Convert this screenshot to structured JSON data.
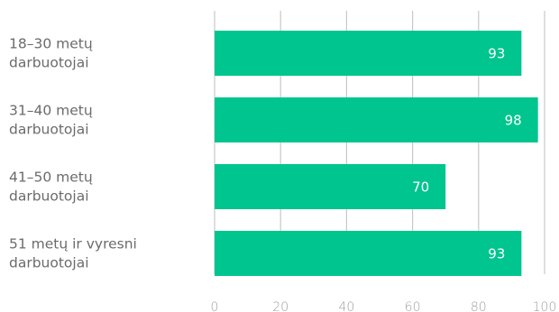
{
  "chart_data": {
    "type": "bar",
    "orientation": "horizontal",
    "categories": [
      [
        "18–30 metų",
        "darbuotojai"
      ],
      [
        "31–40 metų",
        "darbuotojai"
      ],
      [
        "41–50 metų",
        "darbuotojai"
      ],
      [
        "51 metų ir vyresni",
        "darbuotojai"
      ]
    ],
    "values": [
      93,
      98,
      70,
      93
    ],
    "data_labels": [
      "93",
      "98",
      "70",
      "93"
    ],
    "xlim": [
      0,
      100
    ],
    "xticks": [
      0,
      20,
      40,
      60,
      80,
      100
    ],
    "grid": true,
    "bar_color": "#00c58e",
    "grid_color": "#c8c8c8",
    "title": "",
    "xlabel": "",
    "ylabel": ""
  }
}
